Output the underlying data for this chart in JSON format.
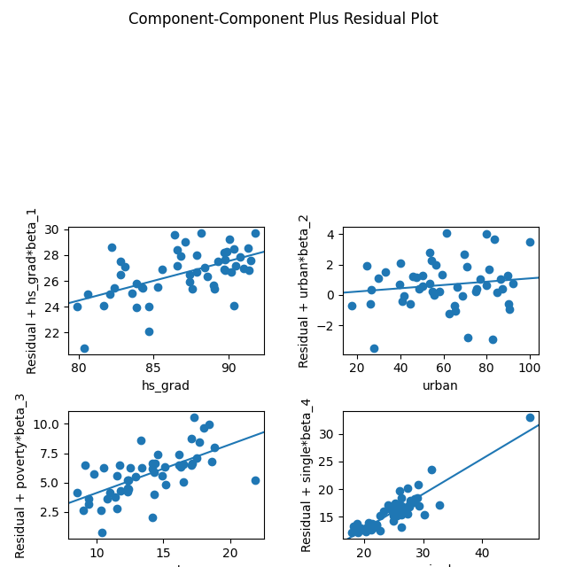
{
  "title": "Component-Component Plus Residual Plot",
  "subplots": [
    {
      "xlabel": "hs_grad",
      "ylabel": "Residual + hs_grad*beta_1"
    },
    {
      "xlabel": "urban",
      "ylabel": "Residual + urban*beta_2"
    },
    {
      "xlabel": "poverty",
      "ylabel": "Residual + poverty*beta_3"
    },
    {
      "xlabel": "single",
      "ylabel": "Residual + single*beta_4"
    }
  ],
  "dot_color": "#1f77b4",
  "line_color": "#1f77b4",
  "figsize": [
    6.4,
    6.4
  ],
  "dpi": 100
}
